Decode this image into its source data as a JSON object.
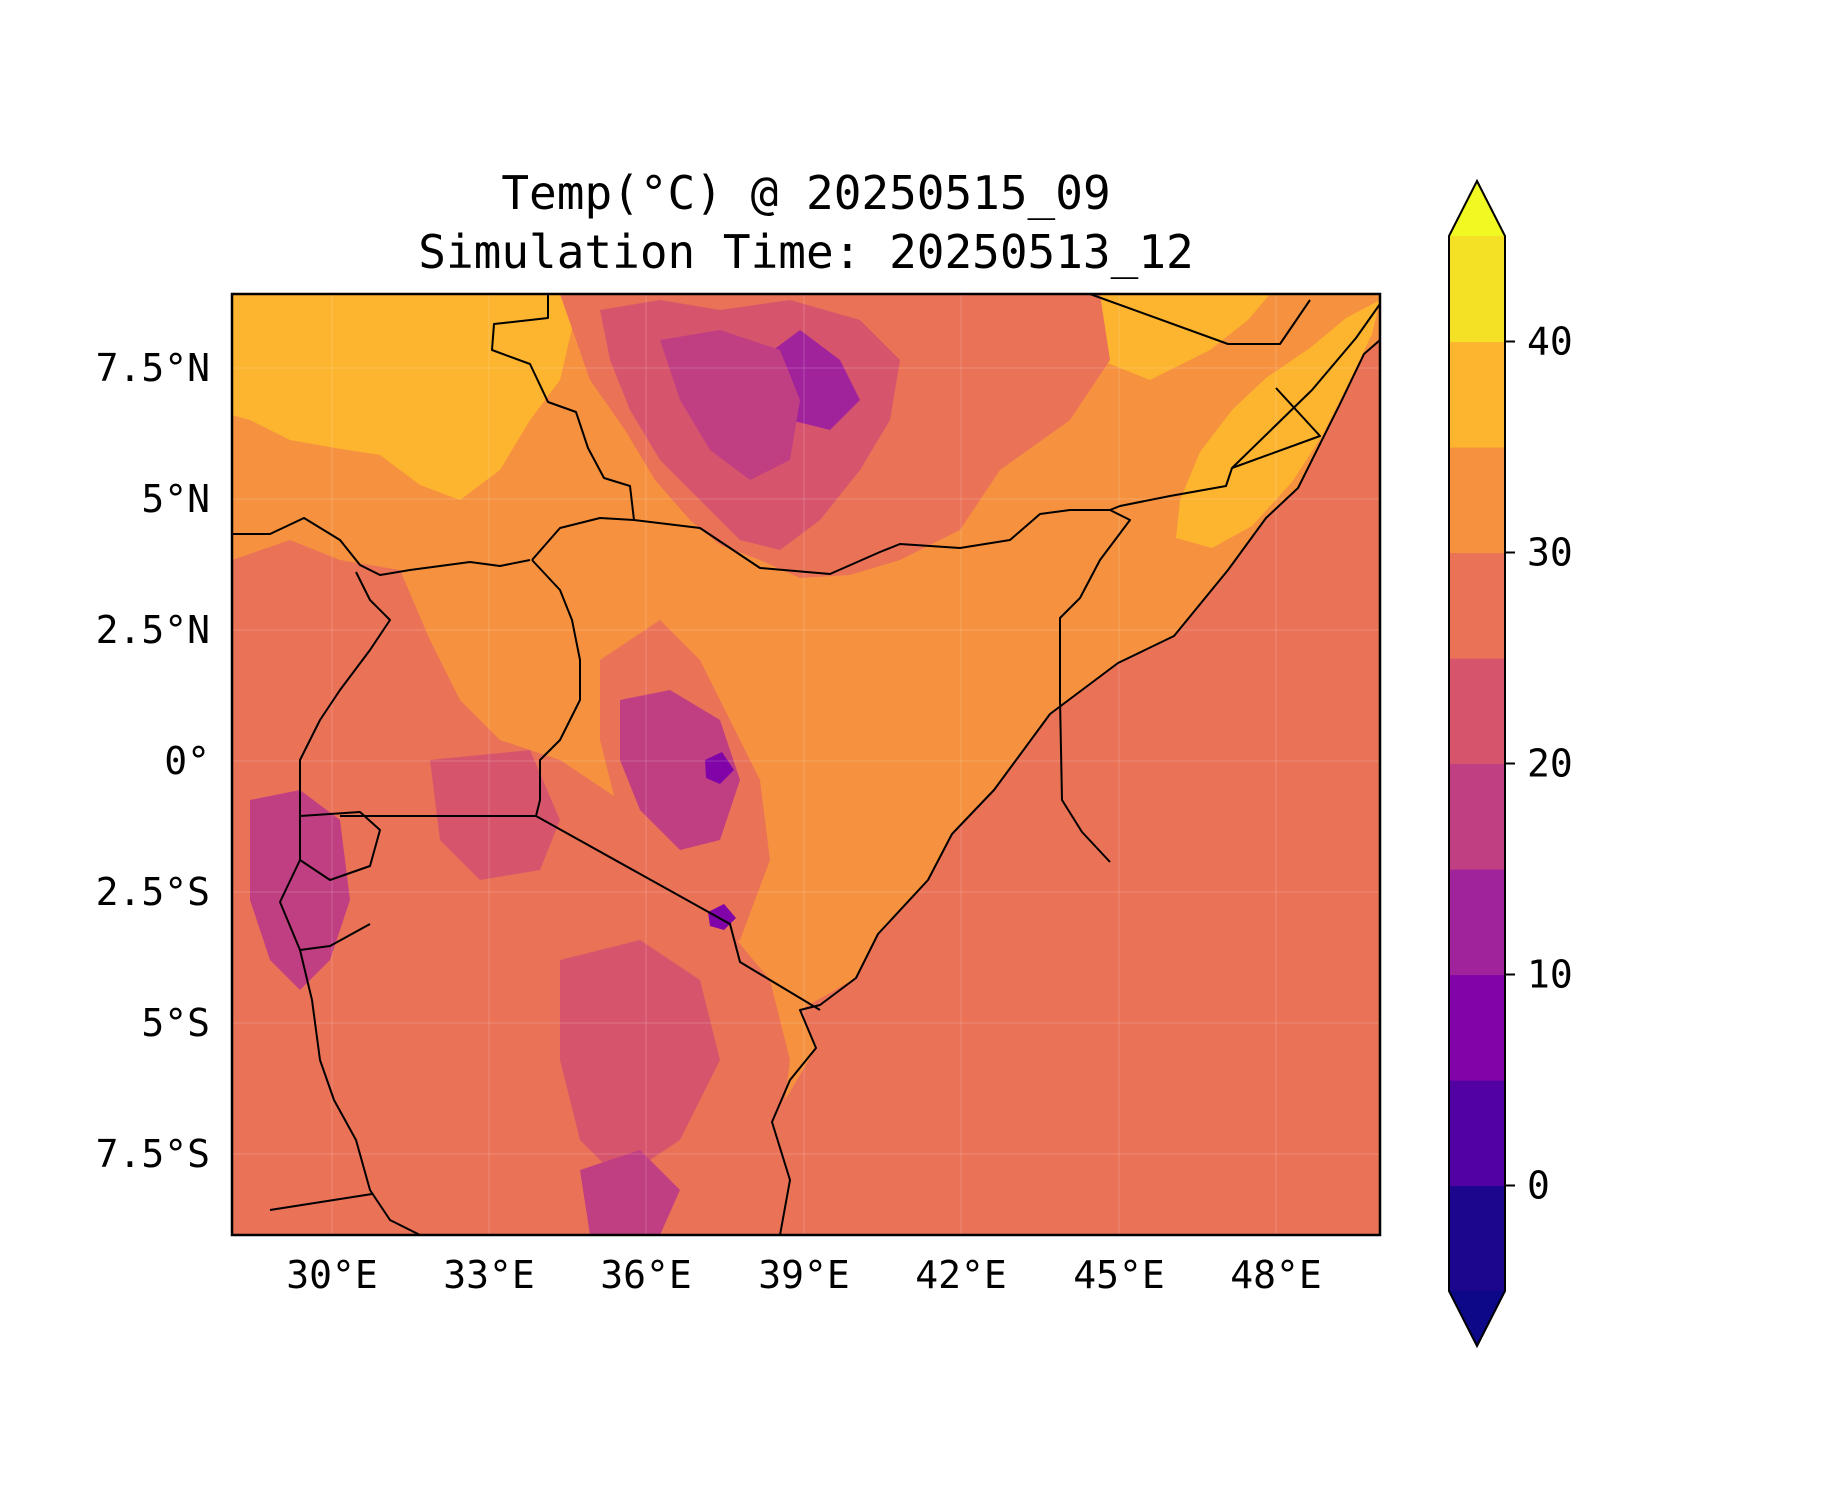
{
  "title_line1": "Temp(°C) @ 20250515_09",
  "title_line2": "Simulation Time: 20250513_12",
  "map": {
    "lon_range": [
      27.5,
      50.5
    ],
    "lat_range": [
      -9,
      9
    ],
    "x_ticks": [
      {
        "lon": 30,
        "label": "30°E"
      },
      {
        "lon": 33,
        "label": "33°E"
      },
      {
        "lon": 36,
        "label": "36°E"
      },
      {
        "lon": 39,
        "label": "39°E"
      },
      {
        "lon": 42,
        "label": "42°E"
      },
      {
        "lon": 45,
        "label": "45°E"
      },
      {
        "lon": 48,
        "label": "48°E"
      }
    ],
    "y_ticks": [
      {
        "lat": 7.5,
        "label": "7.5°N"
      },
      {
        "lat": 5,
        "label": "5°N"
      },
      {
        "lat": 2.5,
        "label": "2.5°N"
      },
      {
        "lat": 0,
        "label": "0°"
      },
      {
        "lat": -2.5,
        "label": "2.5°S"
      },
      {
        "lat": -5,
        "label": "5°S"
      },
      {
        "lat": -7.5,
        "label": "7.5°S"
      }
    ]
  },
  "colorbar": {
    "min": -5,
    "max": 45,
    "levels": [
      -5,
      0,
      5,
      10,
      15,
      20,
      25,
      30,
      35,
      40,
      45
    ],
    "colors": [
      "#1b068d",
      "#5201a3",
      "#8004a7",
      "#a1239c",
      "#c03f83",
      "#d6556d",
      "#e97257",
      "#f6923f",
      "#fdb42f",
      "#f4e025"
    ],
    "under_color": "#0d0887",
    "over_color": "#f0f921",
    "ticks": [
      {
        "value": 0,
        "label": "0"
      },
      {
        "value": 10,
        "label": "10"
      },
      {
        "value": 20,
        "label": "20"
      },
      {
        "value": 30,
        "label": "30"
      },
      {
        "value": 40,
        "label": "40"
      }
    ]
  }
}
